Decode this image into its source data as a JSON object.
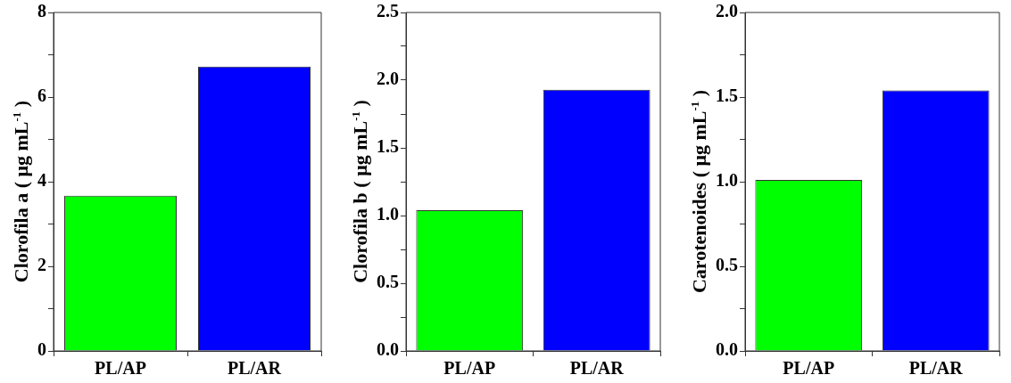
{
  "chart_data": [
    {
      "type": "bar",
      "ylabel": "Clorofila a ( μg mL$^{-1}$ )",
      "categories": [
        "PL/AP",
        "PL/AR"
      ],
      "values": [
        3.67,
        6.72
      ],
      "colors": [
        "#00ff00",
        "#0000ff"
      ],
      "ylim": [
        0,
        8
      ],
      "yticks": [
        0,
        {
          "value": 1,
          "label": null
        },
        2,
        {
          "value": 3,
          "label": null
        },
        4,
        {
          "value": 5,
          "label": null
        },
        6,
        {
          "value": 7,
          "label": null
        },
        8
      ],
      "grid": false
    },
    {
      "type": "bar",
      "ylabel": "Clorofila b ( μg mL$^{-1}$ )",
      "categories": [
        "PL/AP",
        "PL/AR"
      ],
      "values": [
        1.04,
        1.93
      ],
      "colors": [
        "#00ff00",
        "#0000ff"
      ],
      "ylim": [
        0,
        2.5
      ],
      "yticks": [
        {
          "value": 0,
          "label": "0.0"
        },
        {
          "value": 0.25,
          "label": null
        },
        0.5,
        {
          "value": 0.75,
          "label": null
        },
        {
          "value": 1,
          "label": "1.0"
        },
        {
          "value": 1.25,
          "label": null
        },
        1.5,
        {
          "value": 1.75,
          "label": null
        },
        {
          "value": 2,
          "label": "2.0"
        },
        {
          "value": 2.25,
          "label": null
        },
        2.5
      ],
      "grid": false
    },
    {
      "type": "bar",
      "ylabel": "Carotenoides ( μg mL$^{-1}$ )",
      "categories": [
        "PL/AP",
        "PL/AR"
      ],
      "values": [
        1.01,
        1.54
      ],
      "colors": [
        "#00ff00",
        "#0000ff"
      ],
      "ylim": [
        0,
        2
      ],
      "yticks": [
        {
          "value": 0,
          "label": "0.0"
        },
        {
          "value": 0.25,
          "label": null
        },
        0.5,
        {
          "value": 0.75,
          "label": null
        },
        {
          "value": 1,
          "label": "1.0"
        },
        {
          "value": 1.25,
          "label": null
        },
        1.5,
        {
          "value": 1.75,
          "label": null
        },
        {
          "value": 2,
          "label": "2.0"
        }
      ],
      "grid": false
    }
  ]
}
